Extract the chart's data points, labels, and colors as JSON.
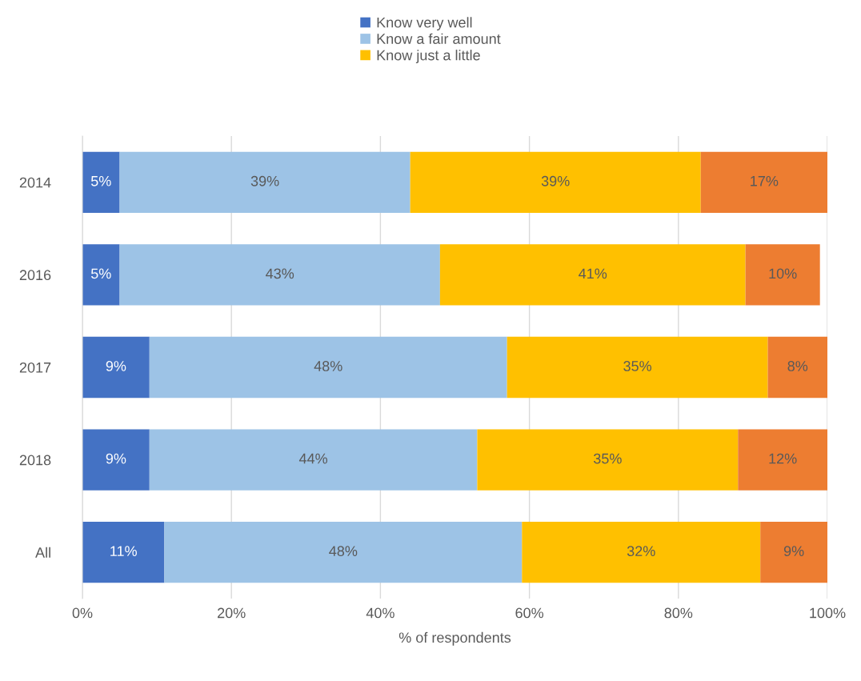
{
  "chart_data": {
    "type": "bar",
    "orientation": "horizontal",
    "stacked": true,
    "xlabel": "% of respondents",
    "categories": [
      "2014",
      "2016",
      "2017",
      "2018",
      "All"
    ],
    "series": [
      {
        "name": "Know very well",
        "color": "#4472c4",
        "values": [
          5,
          5,
          9,
          9,
          11
        ],
        "value_labels": [
          "5%",
          "5%",
          "9%",
          "9%",
          "11%"
        ]
      },
      {
        "name": "Know a fair amount",
        "color": "#9dc3e6",
        "values": [
          39,
          43,
          48,
          44,
          48
        ],
        "value_labels": [
          "39%",
          "43%",
          "48%",
          "44%",
          "48%"
        ]
      },
      {
        "name": "Know just a little",
        "color": "#ffc000",
        "values": [
          39,
          41,
          35,
          35,
          32
        ],
        "value_labels": [
          "39%",
          "41%",
          "35%",
          "35%",
          "32%"
        ]
      },
      {
        "color": "#ed7d31",
        "values": [
          17,
          10,
          8,
          12,
          9
        ],
        "value_labels": [
          "17%",
          "10%",
          "8%",
          "12%",
          "9%"
        ]
      }
    ],
    "xlim": [
      0,
      100
    ],
    "xticks": [
      {
        "value": 0,
        "label": "0%"
      },
      {
        "value": 20,
        "label": "20%"
      },
      {
        "value": 40,
        "label": "40%"
      },
      {
        "value": 60,
        "label": "60%"
      },
      {
        "value": 80,
        "label": "80%"
      },
      {
        "value": 100,
        "label": "100%"
      }
    ],
    "grid": "x",
    "legend": "top"
  }
}
